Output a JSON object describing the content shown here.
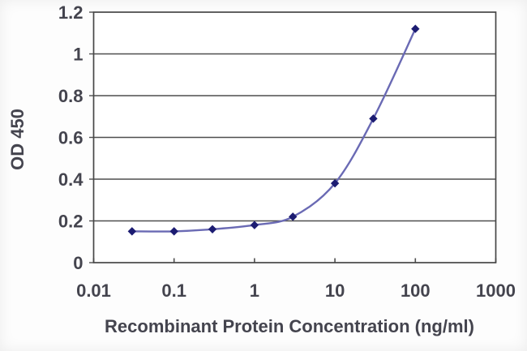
{
  "chart_data": {
    "type": "line",
    "title": "",
    "xlabel": "Recombinant Protein Concentration (ng/ml)",
    "ylabel": "OD 450",
    "x_scale": "log",
    "xlim": [
      0.01,
      1000
    ],
    "ylim": [
      0,
      1.2
    ],
    "x": [
      0.03,
      0.1,
      0.3,
      1,
      3,
      10,
      30,
      100
    ],
    "series": [
      {
        "name": "OD 450",
        "values": [
          0.15,
          0.15,
          0.16,
          0.18,
          0.22,
          0.38,
          0.69,
          1.12
        ],
        "marker": "diamond",
        "line_style": "smoothed"
      }
    ],
    "x_ticks": [
      {
        "value": 0.01,
        "label": "0.01"
      },
      {
        "value": 0.1,
        "label": "0.1"
      },
      {
        "value": 1,
        "label": "1"
      },
      {
        "value": 10,
        "label": "10"
      },
      {
        "value": 100,
        "label": "100"
      },
      {
        "value": 1000,
        "label": "1000"
      }
    ],
    "y_ticks": [
      {
        "value": 0,
        "label": "0"
      },
      {
        "value": 0.2,
        "label": "0.2"
      },
      {
        "value": 0.4,
        "label": "0.4"
      },
      {
        "value": 0.6,
        "label": "0.6"
      },
      {
        "value": 0.8,
        "label": "0.8"
      },
      {
        "value": 1,
        "label": "1"
      },
      {
        "value": 1.2,
        "label": "1.2"
      }
    ],
    "grid": "horizontal",
    "legend": "none",
    "colors": {
      "line": "#6a6ab4",
      "marker": "#1c1c72",
      "grid": "#4f4f4f",
      "axis_border": "#474747",
      "text": "#44444e",
      "plot_background": "#ffffff",
      "page_background": "#fdfdfd"
    }
  }
}
